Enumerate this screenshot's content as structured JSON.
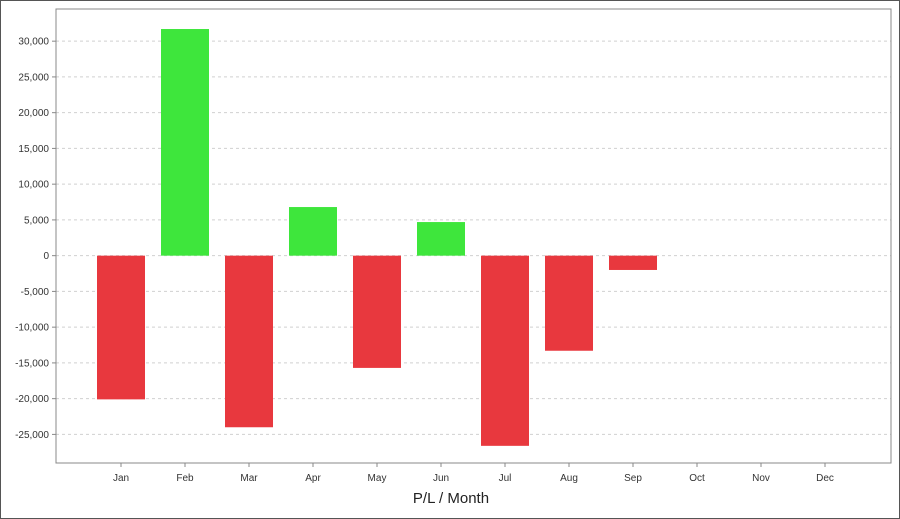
{
  "chart_data": {
    "type": "bar",
    "title": "",
    "xlabel": "P/L / Month",
    "ylabel": "",
    "categories": [
      "Jan",
      "Feb",
      "Mar",
      "Apr",
      "May",
      "Jun",
      "Jul",
      "Aug",
      "Sep",
      "Oct",
      "Nov",
      "Dec"
    ],
    "values": [
      -20100,
      31700,
      -24000,
      6800,
      -15700,
      4700,
      -26600,
      -13300,
      -2000,
      null,
      null,
      null
    ],
    "ylim": [
      -29000,
      34500
    ],
    "yticks": [
      -25000,
      -20000,
      -15000,
      -10000,
      -5000,
      0,
      5000,
      10000,
      15000,
      20000,
      25000,
      30000
    ],
    "ytick_labels": [
      "-25,000",
      "-20,000",
      "-15,000",
      "-10,000",
      "-5,000",
      "0",
      "5,000",
      "10,000",
      "15,000",
      "20,000",
      "25,000",
      "30,000"
    ],
    "grid": true,
    "colors": {
      "positive": "#3ee63c",
      "negative": "#e8383e",
      "grid": "#d0d0d0",
      "axis": "#888888"
    }
  }
}
